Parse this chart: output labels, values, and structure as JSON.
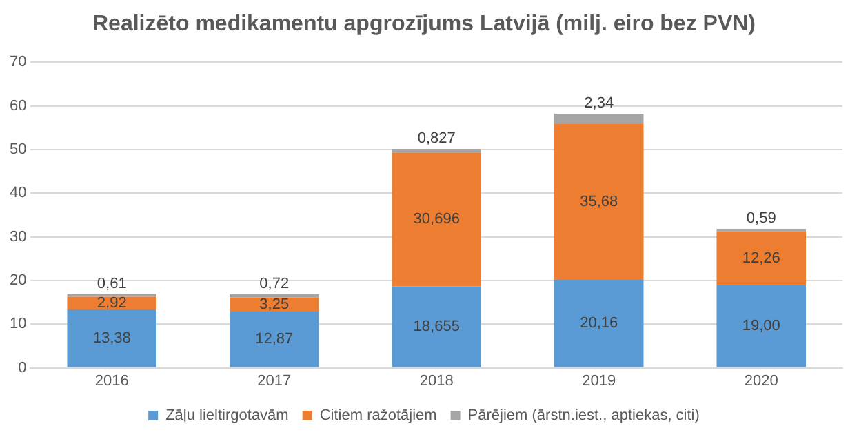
{
  "chart_data": {
    "type": "bar",
    "title": "Realizēto medikamentu apgrozījums Latvijā (milj. eiro bez PVN)",
    "categories": [
      "2016",
      "2017",
      "2018",
      "2019",
      "2020"
    ],
    "stacked": true,
    "ylim": [
      0,
      70
    ],
    "yticks": [
      0,
      10,
      20,
      30,
      40,
      50,
      60,
      70
    ],
    "grid": "y",
    "legend": "bottom",
    "series": [
      {
        "name": "Zāļu lieltirgotavām",
        "color": "#5b9bd5",
        "values": [
          13.38,
          12.87,
          18.655,
          20.16,
          19.0
        ],
        "value_labels": [
          "13,38",
          "12,87",
          "18,655",
          "20,16",
          "19,00"
        ]
      },
      {
        "name": "Citiem ražotājiem",
        "color": "#ed7d31",
        "values": [
          2.92,
          3.25,
          30.696,
          35.68,
          12.26
        ],
        "value_labels": [
          "2,92",
          "3,25",
          "30,696",
          "35,68",
          "12,26"
        ]
      },
      {
        "name": "Pārējiem (ārstn.iest., aptiekas, citi)",
        "color": "#a5a5a5",
        "values": [
          0.61,
          0.72,
          0.827,
          2.34,
          0.59
        ],
        "value_labels": [
          "0,61",
          "0,72",
          "0,827",
          "2,34",
          "0,59"
        ]
      }
    ]
  }
}
